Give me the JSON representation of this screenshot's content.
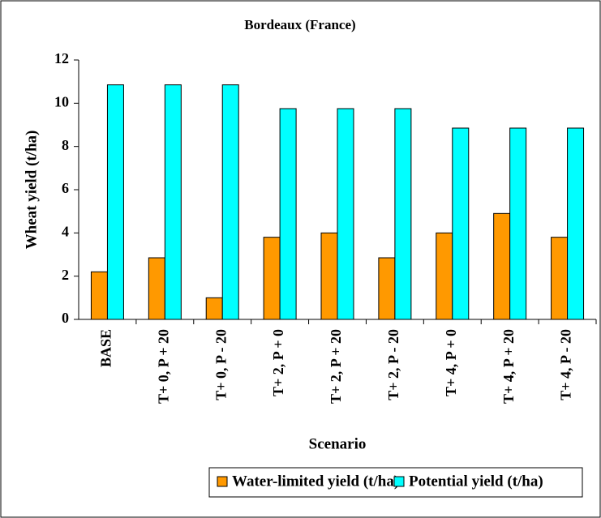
{
  "chart_data": {
    "type": "bar",
    "title": "Bordeaux (France)",
    "x_label": "Scenario",
    "y_label": "Wheat yield (t/ha)",
    "categories": [
      "BASE",
      "T+ 0, P + 20",
      "T+ 0, P - 20",
      "T+ 2, P + 0",
      "T+ 2, P + 20",
      "T+ 2, P - 20",
      "T+ 4, P + 0",
      "T+ 4, P + 20",
      "T+ 4, P - 20"
    ],
    "series": [
      {
        "name": "Water-limited yield (t/ha)",
        "color": "#ff9900",
        "values": [
          2.2,
          2.85,
          1.0,
          3.8,
          4.0,
          2.85,
          4.0,
          4.9,
          3.8
        ]
      },
      {
        "name": "Potential yield (t/ha)",
        "color": "#00ffff",
        "values": [
          10.85,
          10.85,
          10.85,
          9.75,
          9.75,
          9.75,
          8.85,
          8.85,
          8.85
        ]
      }
    ],
    "ylim": [
      0,
      12
    ],
    "yticks": [
      0,
      2,
      4,
      6,
      8,
      10,
      12
    ],
    "grid": false,
    "legend": "bottom"
  }
}
